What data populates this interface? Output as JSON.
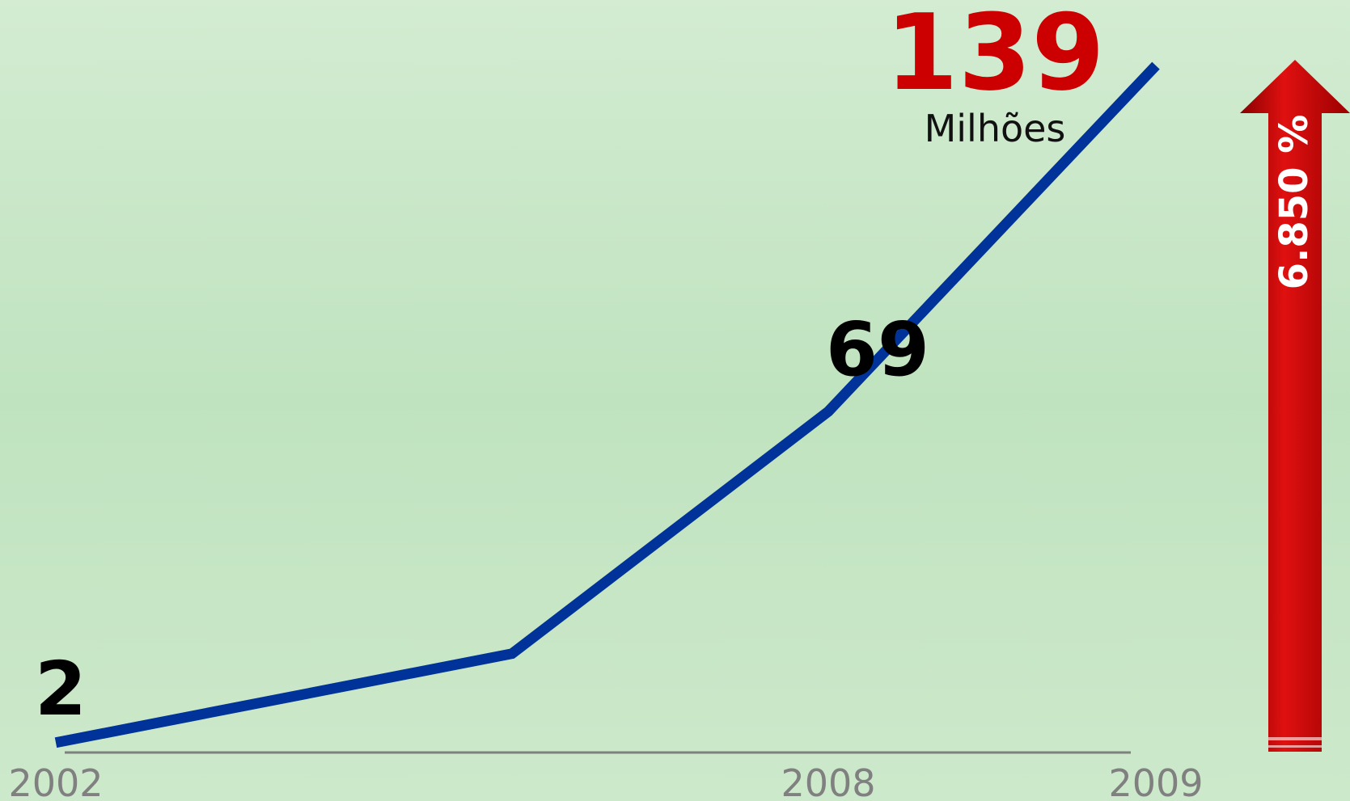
{
  "chart_data": {
    "type": "line",
    "categories": [
      "2002",
      null,
      "2008",
      "2009"
    ],
    "series": [
      {
        "name": null,
        "color": "#003399",
        "values": [
          2,
          20,
          69,
          139
        ]
      }
    ],
    "ylim": [
      0,
      140
    ],
    "unit_label": "Milhões",
    "annotation": "6.850 %",
    "label_colors": [
      "#000000",
      null,
      "#000000",
      "#cc0000"
    ]
  }
}
